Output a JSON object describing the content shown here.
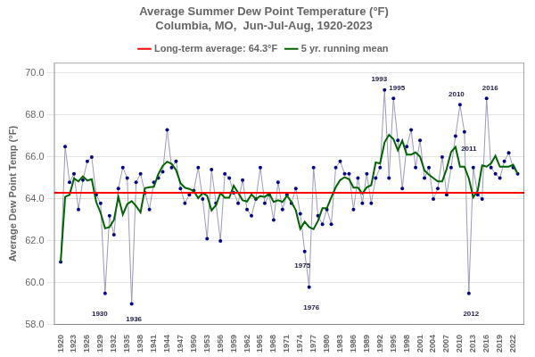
{
  "chart_data": {
    "type": "line",
    "title": "Average Summer Dew Point Temperature (°F)",
    "subtitle": "Columbia, MO,  Jun-Jul-Aug, 1920-2023",
    "y_label": "Average Dew Point Temp (°F)",
    "x": [
      1920,
      1921,
      1922,
      1923,
      1924,
      1925,
      1926,
      1927,
      1928,
      1929,
      1930,
      1931,
      1932,
      1933,
      1934,
      1935,
      1936,
      1937,
      1938,
      1939,
      1940,
      1941,
      1942,
      1943,
      1944,
      1945,
      1946,
      1947,
      1948,
      1949,
      1950,
      1951,
      1952,
      1953,
      1954,
      1955,
      1956,
      1957,
      1958,
      1959,
      1960,
      1961,
      1962,
      1963,
      1964,
      1965,
      1966,
      1967,
      1968,
      1969,
      1970,
      1971,
      1972,
      1973,
      1974,
      1975,
      1976,
      1977,
      1978,
      1979,
      1980,
      1981,
      1982,
      1983,
      1984,
      1985,
      1986,
      1987,
      1988,
      1989,
      1990,
      1991,
      1992,
      1993,
      1994,
      1995,
      1996,
      1997,
      1998,
      1999,
      2000,
      2001,
      2002,
      2003,
      2004,
      2005,
      2006,
      2007,
      2008,
      2009,
      2010,
      2011,
      2012,
      2013,
      2014,
      2015,
      2016,
      2017,
      2018,
      2019,
      2020,
      2021,
      2022,
      2023
    ],
    "series": [
      {
        "name": "5 yr. running mean",
        "color": "#006400",
        "values": [
          61.0,
          64.1,
          64.2,
          64.98,
          64.84,
          65.08,
          64.88,
          64.94,
          63.86,
          63.34,
          62.6,
          62.66,
          63.0,
          64.1,
          63.26,
          63.76,
          63.9,
          63.66,
          63.36,
          64.52,
          64.56,
          64.58,
          65.18,
          65.58,
          65.78,
          65.68,
          65.38,
          64.76,
          64.54,
          64.48,
          64.38,
          64.04,
          64.28,
          64.16,
          63.46,
          63.7,
          64.28,
          64.06,
          64.06,
          64.64,
          64.3,
          63.94,
          63.88,
          64.22,
          64.0,
          64.14,
          64.1,
          64.26,
          63.86,
          63.94,
          63.86,
          64.16,
          63.86,
          63.46,
          62.58,
          62.92,
          62.66,
          62.56,
          62.96,
          63.56,
          63.56,
          64.08,
          64.56,
          64.9,
          65.04,
          64.94,
          64.54,
          64.54,
          64.26,
          64.56,
          64.66,
          65.74,
          65.7,
          66.7,
          67.06,
          66.86,
          66.32,
          66.78,
          66.12,
          66.12,
          66.22,
          66.02,
          65.36,
          65.16,
          65.0,
          64.84,
          64.84,
          65.44,
          66.24,
          66.48,
          65.54,
          65.54,
          64.98,
          64.08,
          64.4,
          65.6,
          65.54,
          65.7,
          66.06,
          65.54,
          65.54,
          65.54,
          65.633,
          65.2
        ]
      },
      {
        "color": "#9999bb",
        "marker": "none",
        "values": [
          61.0,
          66.5,
          64.8,
          65.2,
          63.5,
          64.9,
          65.8,
          66.0,
          64.2,
          63.8,
          59.5,
          63.2,
          62.3,
          64.5,
          65.5,
          65.0,
          59.0,
          64.8,
          65.2,
          64.3,
          63.5,
          64.8,
          65.0,
          65.3,
          67.3,
          65.5,
          65.8,
          64.5,
          63.8,
          64.2,
          64.4,
          65.5,
          64.0,
          62.1,
          65.4,
          63.8,
          62.0,
          65.2,
          65.0,
          64.3,
          63.8,
          64.9,
          63.5,
          63.2,
          64.0,
          65.5,
          63.8,
          64.2,
          63.0,
          64.8,
          63.5,
          64.2,
          63.8,
          64.5,
          63.3,
          61.5,
          59.8,
          65.5,
          63.2,
          62.8,
          63.5,
          62.8,
          65.5,
          65.8,
          65.2,
          65.2,
          63.5,
          65.0,
          63.8,
          65.2,
          63.8,
          65.0,
          65.5,
          69.2,
          65.0,
          68.8,
          66.8,
          64.5,
          66.5,
          67.3,
          65.5,
          66.8,
          65.0,
          65.5,
          64.0,
          64.5,
          66.0,
          64.2,
          65.5,
          67.0,
          68.5,
          67.2,
          59.5,
          65.5,
          64.2,
          64.0,
          68.8,
          65.5,
          65.2,
          65.0,
          65.8,
          66.2,
          65.5,
          65.2
        ]
      },
      {
        "type": "scatter",
        "color": "#00008B",
        "marker": "circle",
        "values": [
          61.0,
          66.5,
          64.8,
          65.2,
          63.5,
          64.9,
          65.8,
          66.0,
          64.2,
          63.8,
          59.5,
          63.2,
          62.3,
          64.5,
          65.5,
          65.0,
          59.0,
          64.8,
          65.2,
          64.3,
          63.5,
          64.8,
          65.0,
          65.3,
          67.3,
          65.5,
          65.8,
          64.5,
          63.8,
          64.2,
          64.4,
          65.5,
          64.0,
          62.1,
          65.4,
          63.8,
          62.0,
          65.2,
          65.0,
          64.3,
          63.8,
          64.9,
          63.5,
          63.2,
          64.0,
          65.5,
          63.8,
          64.2,
          63.0,
          64.8,
          63.5,
          64.2,
          63.8,
          64.5,
          63.3,
          61.5,
          59.8,
          65.5,
          63.2,
          62.8,
          63.5,
          62.8,
          65.5,
          65.8,
          65.2,
          65.2,
          63.5,
          65.0,
          63.8,
          65.2,
          63.8,
          65.0,
          65.5,
          69.2,
          65.0,
          68.8,
          66.8,
          64.5,
          66.5,
          67.3,
          65.5,
          66.8,
          65.0,
          65.5,
          64.0,
          64.5,
          66.0,
          64.2,
          65.5,
          67.0,
          68.5,
          67.2,
          59.5,
          65.5,
          64.2,
          64.0,
          68.8,
          65.5,
          65.2,
          65.0,
          65.8,
          66.2,
          65.5,
          65.2
        ]
      }
    ],
    "reference_lines": [
      {
        "name": "Long-term average: 64.3°F",
        "y": 64.3,
        "color": "#FF0000"
      }
    ],
    "annotations": [
      {
        "text": "1930",
        "x": 1930,
        "y": 59.5,
        "text_x": 1928.8,
        "text_y": 58.5
      },
      {
        "text": "1936",
        "x": 1936,
        "y": 59.0,
        "text_x": 1936.5,
        "text_y": 58.0
      },
      {
        "text": "1975",
        "x": 1975,
        "y": 61.5,
        "text_x": 1974.5,
        "text_y": 60.8
      },
      {
        "text": "1976",
        "x": 1976,
        "y": 59.8,
        "text_x": 1976.5,
        "text_y": 58.8
      },
      {
        "text": "1993",
        "x": 1993,
        "y": 69.2,
        "text_x": 1991.8,
        "text_y": 69.7
      },
      {
        "text": "1995",
        "x": 1995,
        "y": 68.8,
        "text_x": 1995.8,
        "text_y": 69.3
      },
      {
        "text": "2010",
        "x": 2010,
        "y": 68.5,
        "text_x": 2009.2,
        "text_y": 69.0
      },
      {
        "text": "2011",
        "x": 2011,
        "y": 67.2,
        "text_x": 2012.0,
        "text_y": 66.4
      },
      {
        "text": "2012",
        "x": 2012,
        "y": 59.5,
        "text_x": 2012.5,
        "text_y": 58.5
      },
      {
        "text": "2016",
        "x": 2016,
        "y": 68.8,
        "text_x": 2016.8,
        "text_y": 69.3
      }
    ],
    "xlim": [
      1918.5,
      2024.5
    ],
    "xticks": [
      1920,
      1923,
      1926,
      1929,
      1932,
      1935,
      1938,
      1941,
      1944,
      1947,
      1950,
      1953,
      1956,
      1959,
      1962,
      1965,
      1968,
      1971,
      1974,
      1977,
      1980,
      1983,
      1986,
      1989,
      1992,
      1995,
      1998,
      2001,
      2004,
      2007,
      2010,
      2013,
      2016,
      2019,
      2022
    ],
    "ylim": [
      58.0,
      70.5
    ],
    "yticks": [
      {
        "value": 58,
        "label": "58.0"
      },
      {
        "value": 60,
        "label": "60.0"
      },
      {
        "value": 62,
        "label": "62.0"
      },
      {
        "value": 64,
        "label": "64.0"
      },
      {
        "value": 66,
        "label": "66.0"
      },
      {
        "value": 68,
        "label": "68.0"
      },
      {
        "value": 70,
        "label": "70.0"
      }
    ],
    "grid": "y",
    "legend": "top"
  }
}
